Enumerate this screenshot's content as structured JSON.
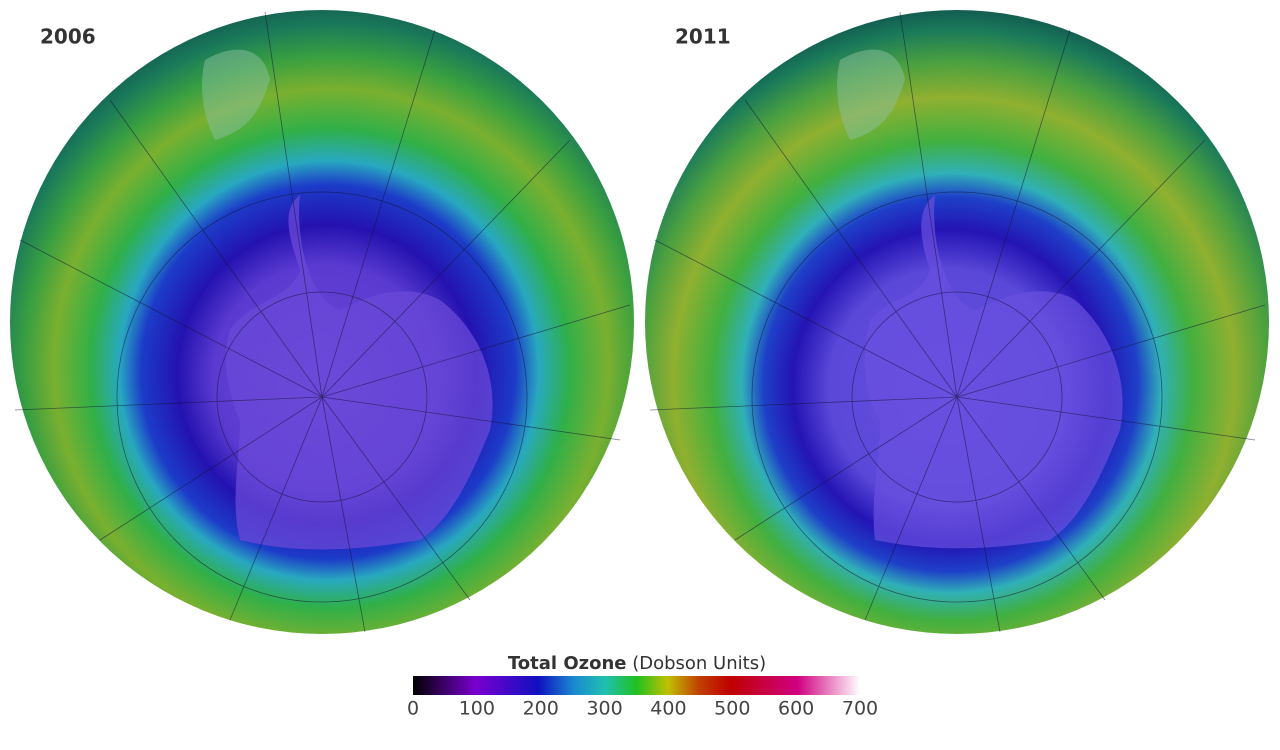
{
  "maps": [
    {
      "label": "2006"
    },
    {
      "label": "2011"
    }
  ],
  "legend": {
    "title": "Total Ozone",
    "unit": "(Dobson Units)",
    "ticks": [
      0,
      100,
      200,
      300,
      400,
      500,
      600,
      700
    ]
  }
}
